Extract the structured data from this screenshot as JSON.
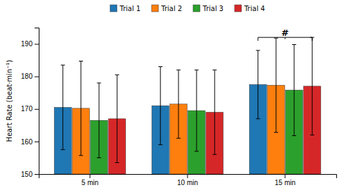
{
  "chart_data": {
    "type": "bar",
    "ylabel": "Heart Rate (beat·min⁻¹)",
    "categories": [
      "5 min",
      "10 min",
      "15 min"
    ],
    "series": [
      {
        "name": "Trial 1",
        "values": [
          170.5,
          171.0,
          177.5
        ],
        "errors": [
          13.0,
          12.0,
          10.5
        ]
      },
      {
        "name": "Trial 2",
        "values": [
          170.2,
          171.5,
          177.3
        ],
        "errors": [
          14.5,
          10.5,
          14.5
        ]
      },
      {
        "name": "Trial 3",
        "values": [
          166.5,
          169.5,
          175.8
        ],
        "errors": [
          11.5,
          12.5,
          14.0
        ]
      },
      {
        "name": "Trial 4",
        "values": [
          167.0,
          169.0,
          177.0
        ],
        "errors": [
          13.5,
          13.0,
          15.0
        ]
      }
    ],
    "ylim": [
      150,
      195
    ],
    "yticks": [
      150,
      160,
      170,
      180,
      190
    ],
    "grid": false,
    "legend": "top",
    "annotations": [
      {
        "text": "#",
        "category": "15 min",
        "y": 192.0
      }
    ]
  }
}
